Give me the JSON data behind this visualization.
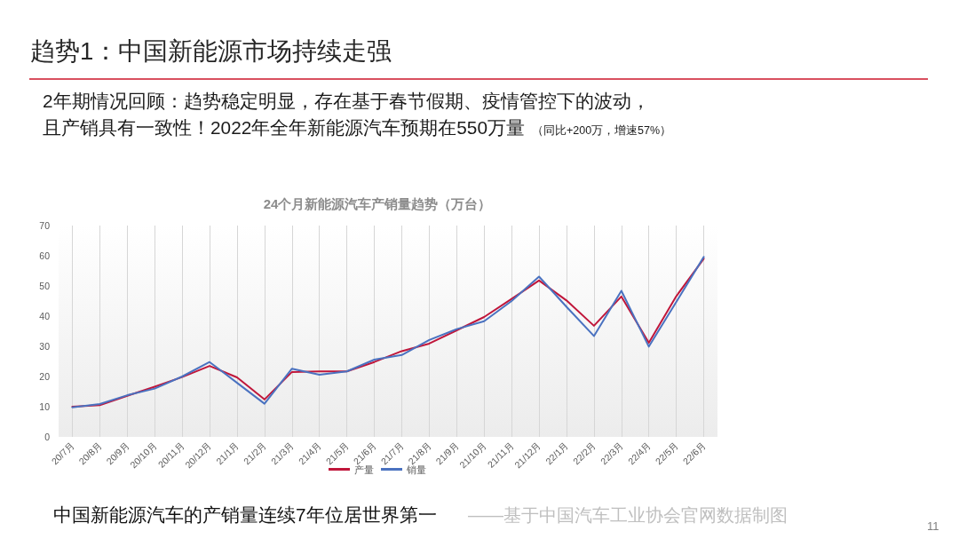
{
  "chart_data": {
    "type": "line",
    "title": "趋势1：中国新能源市场持续走强",
    "subtitle": "2年期情况回顾：趋势稳定明显，存在基于春节假期、疫情管控下的波动，",
    "annotations": [
      "且产销具有一致性！2022年全年新能源汽车预期在550万量",
      "（同比+200万，增速57%）",
      "24个月新能源汽车产销量趋势（万台）",
      "中国新能源汽车的产销量连续7年位居世界第一",
      "——基于中国汽车工业协会官网数据制图",
      "11"
    ],
    "categories": [
      "20/7月",
      "20/8月",
      "20/9月",
      "20/10月",
      "20/11月",
      "20/12月",
      "21/1月",
      "21/2月",
      "21/3月",
      "21/4月",
      "21/5月",
      "21/6月",
      "21/7月",
      "21/8月",
      "21/9月",
      "21/10月",
      "21/11月",
      "21/12月",
      "22/1月",
      "22/2月",
      "22/3月",
      "22/4月",
      "22/5月",
      "22/6月"
    ],
    "series": [
      {
        "name": "产量",
        "color": "#c0163a",
        "values": [
          10.0,
          10.5,
          13.6,
          16.6,
          19.8,
          23.5,
          19.7,
          12.4,
          21.5,
          21.7,
          21.7,
          24.8,
          28.4,
          30.9,
          35.3,
          39.7,
          45.7,
          51.8,
          45.2,
          36.8,
          46.5,
          31.2,
          46.6,
          59.0
        ]
      },
      {
        "name": "销量",
        "color": "#4a72c0",
        "values": [
          9.8,
          10.9,
          13.8,
          16.0,
          20.0,
          24.8,
          17.9,
          11.0,
          22.6,
          20.6,
          21.7,
          25.6,
          27.1,
          32.1,
          35.7,
          38.3,
          45.0,
          53.1,
          43.1,
          33.4,
          48.4,
          29.9,
          44.7,
          59.6
        ]
      }
    ],
    "ylim": [
      0,
      70
    ],
    "yticks": [
      0,
      10,
      20,
      30,
      40,
      50,
      60,
      70
    ],
    "grid": "x",
    "legend": "bottom",
    "marker": "none"
  }
}
